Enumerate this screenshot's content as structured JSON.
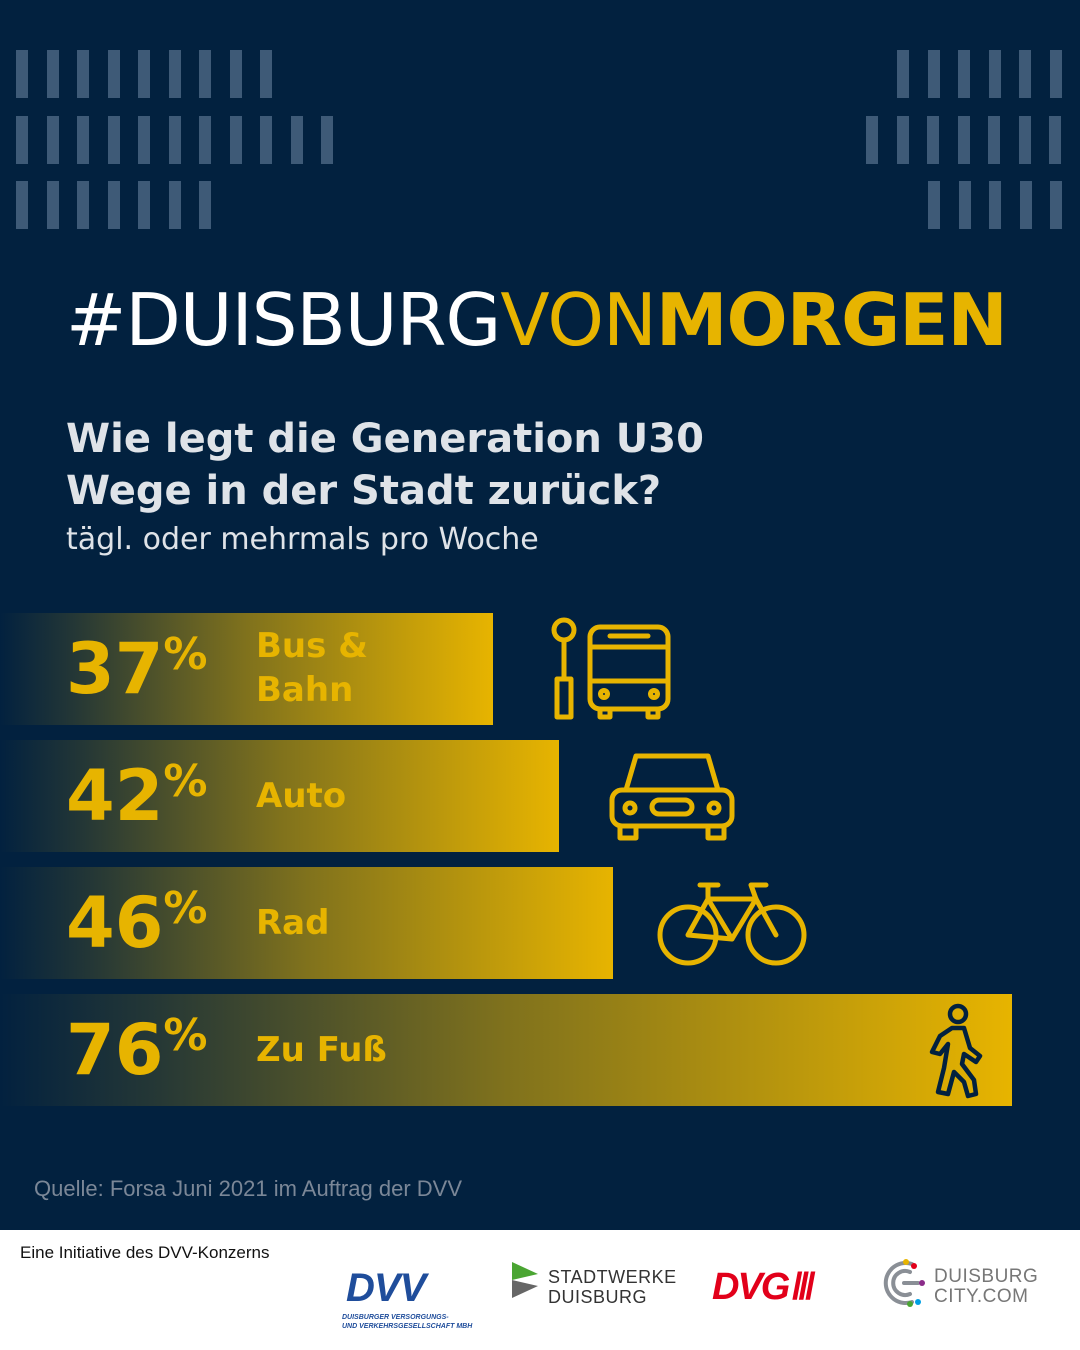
{
  "campaign": {
    "part1": "#DUISBURG",
    "part2": "VON",
    "part3": "MORGEN"
  },
  "heading": {
    "line1": "Wie legt die Generation U30",
    "line2": "Wege in der Stadt zurück?",
    "subtitle": "tägl. oder mehrmals pro Woche"
  },
  "chart_data": {
    "type": "bar",
    "orientation": "horizontal",
    "unit": "%",
    "categories": [
      "Bus & Bahn",
      "Auto",
      "Rad",
      "Zu Fuß"
    ],
    "values": [
      37,
      42,
      46,
      76
    ],
    "series": [
      {
        "values": [
          37,
          42,
          46,
          76
        ]
      }
    ],
    "title": "Wie legt die Generation U30 Wege in der Stadt zurück?",
    "subtitle": "tägl. oder mehrmals pro Woche",
    "xlim": [
      0,
      76
    ],
    "grid": false,
    "legend": "none"
  },
  "bars": [
    {
      "value": 37,
      "label_lines": [
        "Bus &",
        "Bahn"
      ],
      "icon": "bus-stop-icon"
    },
    {
      "value": 42,
      "label_lines": [
        "Auto"
      ],
      "icon": "car-icon"
    },
    {
      "value": 46,
      "label_lines": [
        "Rad"
      ],
      "icon": "bicycle-icon"
    },
    {
      "value": 76,
      "label_lines": [
        "Zu Fuß"
      ],
      "icon": "pedestrian-icon"
    }
  ],
  "percent_sign": "%",
  "source": "Quelle: Forsa Juni 2021 im Auftrag der DVV",
  "footer": {
    "initiative": "Eine Initiative des DVV-Konzerns",
    "logos": {
      "dvv": {
        "name": "DVV",
        "line1": "DUISBURGER VERSORGUNGS-",
        "line2": "UND VERKEHRSGESELLSCHAFT MBH"
      },
      "stadtwerke": {
        "line1": "STADTWERKE",
        "line2": "DUISBURG"
      },
      "dvg": {
        "name": "DVG",
        "marks": "///"
      },
      "duisburg_city": {
        "line1": "DUISBURG",
        "line2": "CITY.COM"
      }
    }
  },
  "colors": {
    "background": "#02213f",
    "accent": "#e7b400",
    "stripe": "#3e5a77",
    "dvv_blue": "#1f4d9b",
    "dvg_red": "#e2001a"
  }
}
